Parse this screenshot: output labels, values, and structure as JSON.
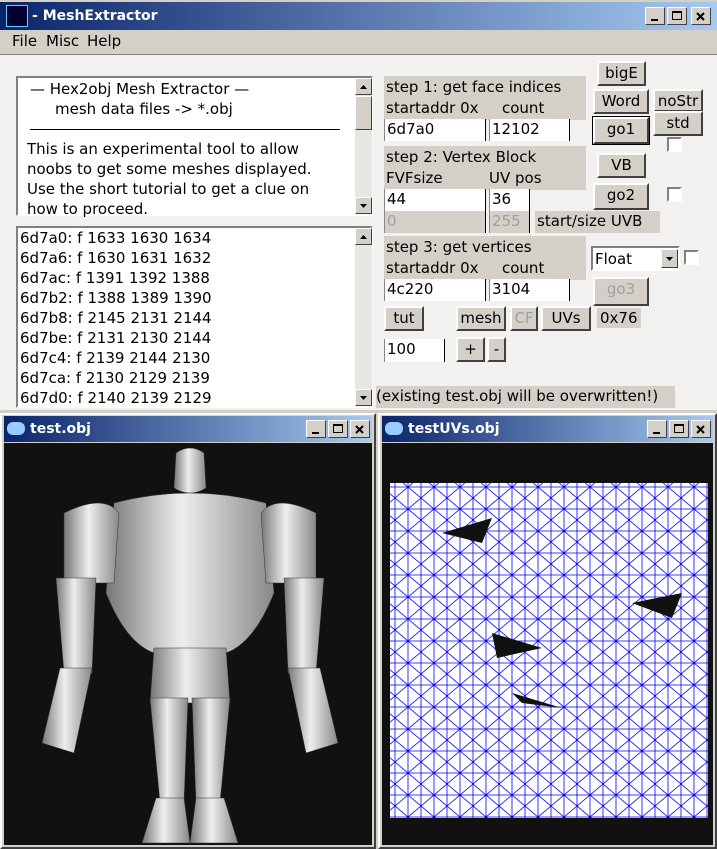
{
  "window": {
    "title": "MeshExtractor",
    "menu": [
      "File",
      "Misc",
      "Help"
    ]
  },
  "info_text": {
    "heading": "—   Hex2obj Mesh Extractor   —",
    "subheading": "mesh data files -> *.obj",
    "lines": [
      "This is an experimental tool to allow",
      "noobs to get some meshes displayed.",
      "Use the short tutorial to get a clue on",
      "how to proceed."
    ]
  },
  "face_list": [
    "6d7a0: f  1633 1630 1634",
    "6d7a6: f  1630 1631 1632",
    "6d7ac: f  1391 1392 1388",
    "6d7b2: f  1388 1389 1390",
    "6d7b8: f  2145 2131 2144",
    "6d7be: f  2131 2130 2144",
    "6d7c4: f  2139 2144 2130",
    "6d7ca: f  2130 2129 2139",
    "6d7d0: f  2140 2139 2129"
  ],
  "step1": {
    "label": "step 1: get face indices",
    "startaddr_label": "startaddr 0x",
    "count_label": "count",
    "startaddr": "6d7a0",
    "count": "12102"
  },
  "step2": {
    "label": "step 2: Vertex Block",
    "fvf_label": "FVFsize",
    "uv_label": "UV pos",
    "fvf": "44",
    "uv": "36",
    "uvb_start": "0",
    "uvb_size": "255",
    "uvb_label": "start/size UVB"
  },
  "step3": {
    "label": "step 3: get vertices",
    "startaddr_label": "startaddr 0x",
    "count_label": "count",
    "startaddr": "4c220",
    "count": "3104",
    "format": "Float"
  },
  "buttons": {
    "bigE": "bigE",
    "word": "Word",
    "nostr": "noStr",
    "go1": "go1",
    "std": "std",
    "vb": "VB",
    "go2": "go2",
    "go3": "go3",
    "tut": "tut",
    "mesh": "mesh",
    "cf": "CF",
    "uvs": "UVs",
    "plus": "+",
    "minus": "-"
  },
  "offset_label": "0x76",
  "zoom": "100",
  "warning": "(existing test.obj will be overwritten!)",
  "child_windows": [
    {
      "title": "test.obj"
    },
    {
      "title": "testUVs.obj"
    }
  ]
}
